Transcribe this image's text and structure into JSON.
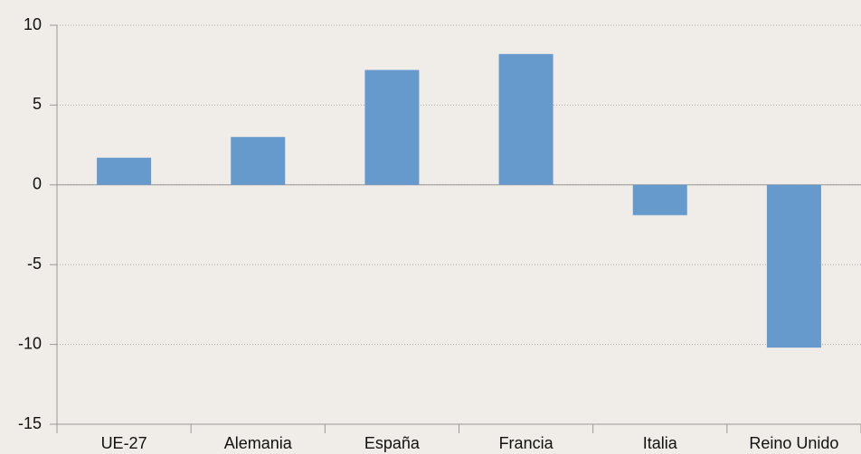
{
  "chart_data": {
    "type": "bar",
    "categories": [
      "UE-27",
      "Alemania",
      "España",
      "Francia",
      "Italia",
      "Reino Unido"
    ],
    "values": [
      1.7,
      3.0,
      7.2,
      8.2,
      -1.9,
      -10.2
    ],
    "color": "#6699cc",
    "ylim": [
      -15,
      10
    ],
    "yticks": [
      -15,
      -10,
      -5,
      0,
      5,
      10
    ],
    "grid": true
  }
}
